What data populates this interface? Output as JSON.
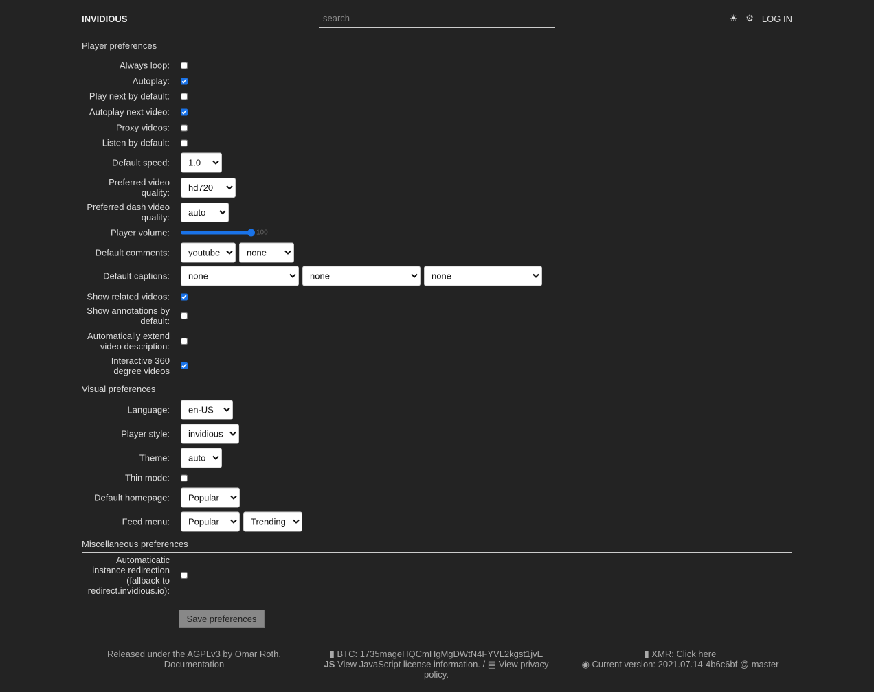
{
  "header": {
    "brand": "INVIDIOUS",
    "search_placeholder": "search",
    "theme_icon": "☀",
    "settings_icon": "⚙",
    "login": "LOG IN"
  },
  "player": {
    "title": "Player preferences",
    "always_loop": "Always loop:",
    "autoplay": "Autoplay:",
    "play_next": "Play next by default:",
    "autoplay_next": "Autoplay next video:",
    "proxy": "Proxy videos:",
    "listen": "Listen by default:",
    "speed": "Default speed:",
    "speed_value": "1.0",
    "quality": "Preferred video quality:",
    "quality_value": "hd720",
    "dash": "Preferred dash video quality:",
    "dash_value": "auto",
    "volume": "Player volume:",
    "volume_value": "100",
    "comments": "Default comments:",
    "comments_values": [
      "youtube",
      "none"
    ],
    "captions": "Default captions:",
    "captions_values": [
      "none",
      "none",
      "none"
    ],
    "related": "Show related videos:",
    "annotations": "Show annotations by default:",
    "extend": "Automatically extend video description:",
    "interactive": "Interactive 360 degree videos",
    "checked": {
      "always_loop": false,
      "autoplay": true,
      "play_next": false,
      "autoplay_next": true,
      "proxy": false,
      "listen": false,
      "related": true,
      "annotations": false,
      "extend": false,
      "interactive": true
    }
  },
  "visual": {
    "title": "Visual preferences",
    "language": "Language:",
    "language_value": "en-US",
    "style": "Player style:",
    "style_value": "invidious",
    "theme": "Theme:",
    "theme_value": "auto",
    "thin": "Thin mode:",
    "thin_checked": false,
    "homepage": "Default homepage:",
    "homepage_value": "Popular",
    "feed": "Feed menu:",
    "feed_values": [
      "Popular",
      "Trending"
    ]
  },
  "misc": {
    "title": "Miscellaneous preferences",
    "redirect": "Automaticatic instance redirection (fallback to redirect.invidious.io):",
    "redirect_checked": false
  },
  "save": "Save preferences",
  "footer": {
    "license": "Released under the AGPLv3 by Omar Roth.",
    "docs": "Documentation",
    "btc": "BTC: 1735mageHQCmHgMgDWtN4FYVL2kgst1jvE",
    "js_badge": "JS",
    "js": "View JavaScript license information.",
    "sep": "/",
    "privacy": "View privacy policy.",
    "xmr": "XMR: Click here",
    "version": "Current version: 2021.07.14-4b6c6bf @ master"
  },
  "colors": {
    "background": "#232323",
    "accent": "#1a73e8"
  }
}
